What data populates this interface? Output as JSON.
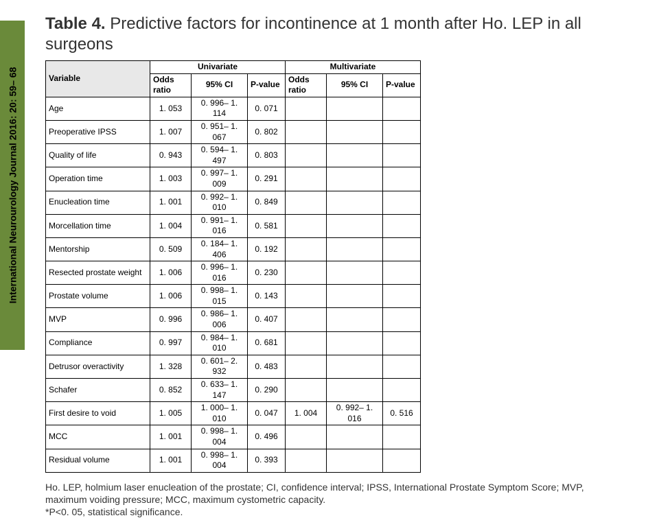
{
  "sidebar": {
    "journal": "International Neurourology Journal 2016: 20: 59– 68"
  },
  "title": {
    "label": "Table 4.",
    "text": "Predictive factors for incontinence at 1 month after Ho. LEP in all surgeons"
  },
  "headers": {
    "variable": "Variable",
    "univariate": "Univariate",
    "multivariate": "Multivariate",
    "odds": "Odds ratio",
    "ci": "95% CI",
    "p": "P-value"
  },
  "rows": [
    {
      "v": "Age",
      "uo": "1. 053",
      "uc": "0. 996– 1. 114",
      "up": "0. 071",
      "mo": "",
      "mc": "",
      "mp": ""
    },
    {
      "v": "Preoperative IPSS",
      "uo": "1. 007",
      "uc": "0. 951– 1. 067",
      "up": "0. 802",
      "mo": "",
      "mc": "",
      "mp": ""
    },
    {
      "v": "Quality of life",
      "uo": "0. 943",
      "uc": "0. 594– 1. 497",
      "up": "0. 803",
      "mo": "",
      "mc": "",
      "mp": ""
    },
    {
      "v": "Operation time",
      "uo": "1. 003",
      "uc": "0. 997– 1. 009",
      "up": "0. 291",
      "mo": "",
      "mc": "",
      "mp": ""
    },
    {
      "v": "Enucleation time",
      "uo": "1. 001",
      "uc": "0. 992– 1. 010",
      "up": "0. 849",
      "mo": "",
      "mc": "",
      "mp": ""
    },
    {
      "v": "Morcellation time",
      "uo": "1. 004",
      "uc": "0. 991– 1. 016",
      "up": "0. 581",
      "mo": "",
      "mc": "",
      "mp": ""
    },
    {
      "v": "Mentorship",
      "uo": "0. 509",
      "uc": "0. 184– 1. 406",
      "up": "0. 192",
      "mo": "",
      "mc": "",
      "mp": ""
    },
    {
      "v": "Resected prostate weight",
      "uo": "1. 006",
      "uc": "0. 996– 1. 016",
      "up": "0. 230",
      "mo": "",
      "mc": "",
      "mp": ""
    },
    {
      "v": "Prostate volume",
      "uo": "1. 006",
      "uc": "0. 998– 1. 015",
      "up": "0. 143",
      "mo": "",
      "mc": "",
      "mp": ""
    },
    {
      "v": "MVP",
      "uo": "0. 996",
      "uc": "0. 986– 1. 006",
      "up": "0. 407",
      "mo": "",
      "mc": "",
      "mp": ""
    },
    {
      "v": "Compliance",
      "uo": "0. 997",
      "uc": "0. 984– 1. 010",
      "up": "0. 681",
      "mo": "",
      "mc": "",
      "mp": ""
    },
    {
      "v": "Detrusor overactivity",
      "uo": "1. 328",
      "uc": "0. 601– 2. 932",
      "up": "0. 483",
      "mo": "",
      "mc": "",
      "mp": ""
    },
    {
      "v": "Schafer",
      "uo": "0. 852",
      "uc": "0. 633– 1. 147",
      "up": "0. 290",
      "mo": "",
      "mc": "",
      "mp": ""
    },
    {
      "v": "First desire to void",
      "uo": "1. 005",
      "uc": "1. 000– 1. 010",
      "up": "0. 047",
      "mo": "1. 004",
      "mc": "0. 992– 1. 016",
      "mp": "0. 516"
    },
    {
      "v": "MCC",
      "uo": "1. 001",
      "uc": "0. 998– 1. 004",
      "up": "0. 496",
      "mo": "",
      "mc": "",
      "mp": ""
    },
    {
      "v": "Residual volume",
      "uo": "1. 001",
      "uc": "0. 998– 1. 004",
      "up": "0. 393",
      "mo": "",
      "mc": "",
      "mp": ""
    }
  ],
  "footnote": {
    "l1": "Ho. LEP, holmium laser enucleation of the prostate; CI, confidence interval; IPSS, International Prostate Symptom Score; MVP, maximum voiding pressure; MCC, maximum cystometric capacity.",
    "l2": "*P<0. 05, statistical significance."
  },
  "col_widths": {
    "odds": 60,
    "ci": 82,
    "p": 55
  }
}
